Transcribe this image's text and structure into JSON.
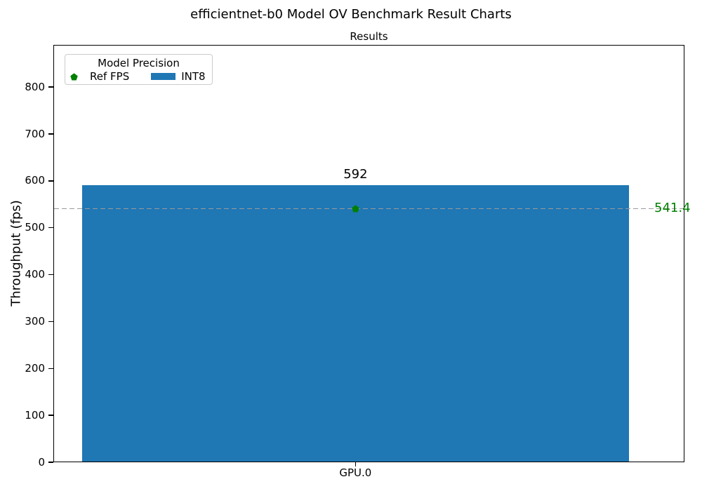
{
  "figure_title": "efficientnet-b0 Model OV Benchmark Result Charts",
  "chart_data": {
    "type": "bar",
    "title": "efficientnet-b0 Model OV Benchmark Result Charts",
    "axes_title": "Results",
    "xlabel": "",
    "ylabel": "Throughput (fps)",
    "categories": [
      "GPU.0"
    ],
    "series": [
      {
        "name": "INT8",
        "values": [
          592
        ],
        "color": "#1f77b4"
      }
    ],
    "bar_labels": [
      "592"
    ],
    "reference": {
      "name": "Ref FPS",
      "value": 541.4,
      "label": "541.4",
      "marker": "pentagon",
      "color": "#008000",
      "line_style": "dashed",
      "line_color": "#9a9a9a"
    },
    "ylim": [
      0,
      890
    ],
    "yticks": [
      0,
      100,
      200,
      300,
      400,
      500,
      600,
      700,
      800
    ],
    "grid": false,
    "legend": {
      "title": "Model Precision",
      "position": "upper-left",
      "entries": [
        {
          "label": "Ref FPS",
          "marker": "pentagon",
          "color": "#008000"
        },
        {
          "label": "INT8",
          "marker": "swatch",
          "color": "#1f77b4"
        }
      ]
    }
  }
}
